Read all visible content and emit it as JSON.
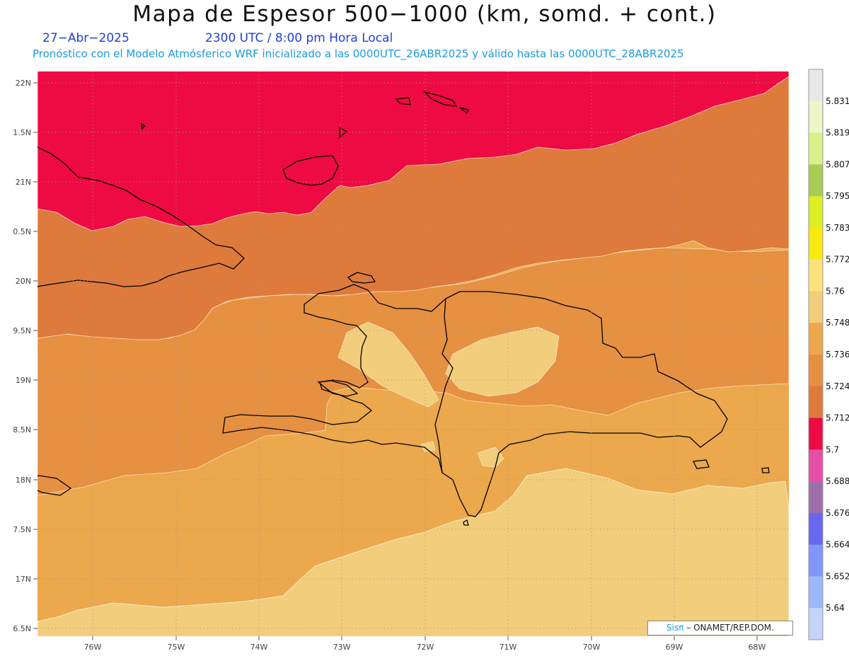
{
  "header": {
    "title": "Mapa de Espesor 500−1000 (km, somd. + cont.)",
    "date": "27−Abr−2025",
    "time": "2300 UTC / 8:00 pm Hora Local",
    "forecast": "Pronóstico con el Modelo Atmósferico WRF inicializado a las 0000UTC_26ABR2025 y válido hasta las  0000UTC_28ABR2025"
  },
  "axes": {
    "latitude_labels": [
      "22N",
      "1.5N",
      "21N",
      "0.5N",
      "20N",
      "9.5N",
      "19N",
      "8.5N",
      "18N",
      "7.5N",
      "17N",
      "6.5N"
    ],
    "longitude_labels": [
      "76W",
      "75W",
      "74W",
      "73W",
      "72W",
      "71W",
      "70W",
      "69W",
      "68W"
    ]
  },
  "colorbar": {
    "labels": [
      "5.831",
      "5.819",
      "5.807",
      "5.795",
      "5.783",
      "5.772",
      "5.76",
      "5.748",
      "5.736",
      "5.724",
      "5.712",
      "5.7",
      "5.688",
      "5.676",
      "5.664",
      "5.652",
      "5.64"
    ],
    "colors": [
      "#e8e8e8",
      "#eef5c8",
      "#daf08a",
      "#a8cc55",
      "#ddee22",
      "#f6ea10",
      "#fbe27c",
      "#f2cd7c",
      "#eba84c",
      "#e69042",
      "#de7a3c",
      "#ee0a42",
      "#e64fa8",
      "#9e6ea8",
      "#6668f0",
      "#8096fa",
      "#9db8f8",
      "#c4d4f8"
    ]
  },
  "map_colors": {
    "band_5_700": "#ee0a42",
    "band_5_712": "#de7a3c",
    "band_5_724": "#e69042",
    "band_5_736": "#eba84c",
    "band_5_748": "#f2cd7c"
  },
  "credit": {
    "brand": "Sisπ",
    "text": "– ONAMET/REP.DOM."
  }
}
